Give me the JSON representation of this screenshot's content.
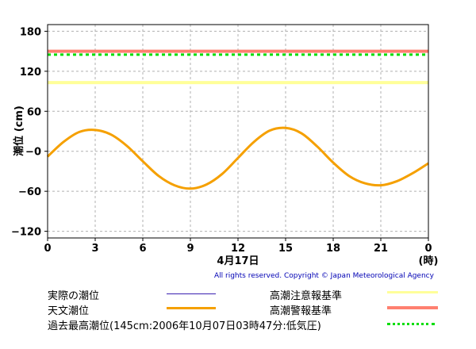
{
  "chart_data": {
    "type": "line",
    "ylabel": "潮位 (cm)",
    "xlabel_date": "4月17日",
    "xlabel_unit": "(時)",
    "xlim": [
      0,
      24
    ],
    "ylim": [
      -130,
      190
    ],
    "y_ticks": [
      "180",
      "120",
      "60",
      "−0",
      "−60",
      "−120"
    ],
    "y_tick_values": [
      180,
      120,
      60,
      0,
      -60,
      -120
    ],
    "x_ticks": [
      "0",
      "3",
      "6",
      "9",
      "12",
      "15",
      "18",
      "21",
      "0"
    ],
    "x_tick_values": [
      0,
      3,
      6,
      9,
      12,
      15,
      18,
      21,
      24
    ],
    "grid": true,
    "series": [
      {
        "name": "天文潮位",
        "color": "#f5a000",
        "x": [
          0,
          1,
          2,
          3,
          4,
          5,
          6,
          7,
          8,
          9,
          10,
          11,
          12,
          13,
          14,
          15,
          16,
          17,
          18,
          19,
          20,
          21,
          22,
          23,
          24
        ],
        "values": [
          -8,
          14,
          29,
          32,
          25,
          8,
          -15,
          -37,
          -51,
          -56,
          -50,
          -34,
          -10,
          14,
          31,
          35,
          27,
          7,
          -17,
          -37,
          -48,
          -51,
          -45,
          -33,
          -18
        ]
      }
    ],
    "reference_lines": [
      {
        "name": "高潮注意報基準",
        "value": 103,
        "color": "#ffff99",
        "style": "solid"
      },
      {
        "name": "高潮警報基準",
        "value": 150,
        "color": "#ff8070",
        "style": "solid"
      },
      {
        "name": "過去最高潮位(145cm:2006年10月07日03時47分:低気圧)",
        "value": 145,
        "color": "#00dd00",
        "style": "dotted"
      }
    ]
  },
  "copyright": "All rights reserved. Copyright © Japan Meteorological Agency",
  "legend": {
    "actual": {
      "label": "実際の潮位",
      "color": "#3a1fb0"
    },
    "astronomical": {
      "label": "天文潮位",
      "color": "#f5a000"
    },
    "advisory": {
      "label": "高潮注意報基準",
      "color": "#ffff99"
    },
    "warning": {
      "label": "高潮警報基準",
      "color": "#ff8070"
    },
    "record": {
      "label": "過去最高潮位(145cm:2006年10月07日03時47分:低気圧)",
      "color": "#00dd00"
    }
  }
}
